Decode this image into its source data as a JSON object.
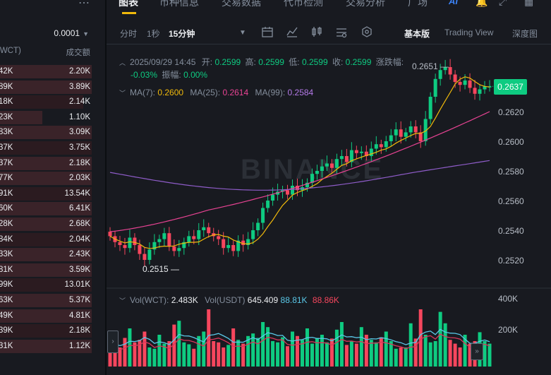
{
  "orderbook": {
    "precision": "0.0001",
    "col_amount": "(WCT)",
    "col_total": "成交额",
    "rows": [
      {
        "amount": "42K",
        "total": "2.20K"
      },
      {
        "amount": "89K",
        "total": "3.89K"
      },
      {
        "amount": "18K",
        "total": "2.14K"
      },
      {
        "amount": "23K",
        "total": "1.10K"
      },
      {
        "amount": "83K",
        "total": "3.09K"
      },
      {
        "amount": "37K",
        "total": "3.75K"
      },
      {
        "amount": "37K",
        "total": "2.18K"
      },
      {
        "amount": "77K",
        "total": "2.03K"
      },
      {
        "amount": "91K",
        "total": "13.54K"
      },
      {
        "amount": "60K",
        "total": "6.41K"
      },
      {
        "amount": "28K",
        "total": "2.68K"
      },
      {
        "amount": "84K",
        "total": "2.04K"
      },
      {
        "amount": "33K",
        "total": "2.43K"
      },
      {
        "amount": "81K",
        "total": "3.59K"
      },
      {
        "amount": "99K",
        "total": "13.01K"
      },
      {
        "amount": "63K",
        "total": "5.37K"
      },
      {
        "amount": "49K",
        "total": "4.81K"
      },
      {
        "amount": "39K",
        "total": "2.18K"
      },
      {
        "amount": "31K",
        "total": "1.12K"
      }
    ]
  },
  "tabs": [
    "图表",
    "币种信息",
    "交易数据",
    "代币检测",
    "交易分析",
    "广场"
  ],
  "ai_label": "AI",
  "toolbar": {
    "timeframes": [
      "分时",
      "1秒",
      "15分钟"
    ],
    "views": [
      "基本版",
      "Trading View",
      "深度图"
    ]
  },
  "ohlc": {
    "date": "2025/09/29 14:45",
    "open_label": "开:",
    "open": "0.2599",
    "high_label": "高:",
    "high": "0.2599",
    "low_label": "低:",
    "low": "0.2599",
    "close_label": "收:",
    "close": "0.2599",
    "change_label": "涨跌幅:",
    "change": "-0.03%",
    "amp_label": "振幅:",
    "amp": "0.00%"
  },
  "ma": {
    "ma7_label": "MA(7):",
    "ma7": "0.2600",
    "ma25_label": "MA(25):",
    "ma25": "0.2614",
    "ma99_label": "MA(99):",
    "ma99": "0.2584"
  },
  "volume": {
    "wct_label": "Vol(WCT):",
    "wct": "2.483K",
    "usdt_label": "Vol(USDT)",
    "usdt": "645.409",
    "ma_a": "88.81K",
    "ma_b": "88.86K"
  },
  "current_price": "0.2637",
  "price_axis": [
    "0.2620",
    "0.2600",
    "0.2580",
    "0.2560",
    "0.2540",
    "0.2520"
  ],
  "vol_axis": [
    "400K",
    "200K"
  ],
  "high_marker": "0.2651",
  "low_marker": "0.2515",
  "watermark": "BINANCE",
  "colors": {
    "up": "#0ecb81",
    "down": "#f6465d",
    "accent": "#f0b90b",
    "ma7": "#f0b90b",
    "ma25": "#e84393",
    "ma99": "#8e5cc8"
  }
}
